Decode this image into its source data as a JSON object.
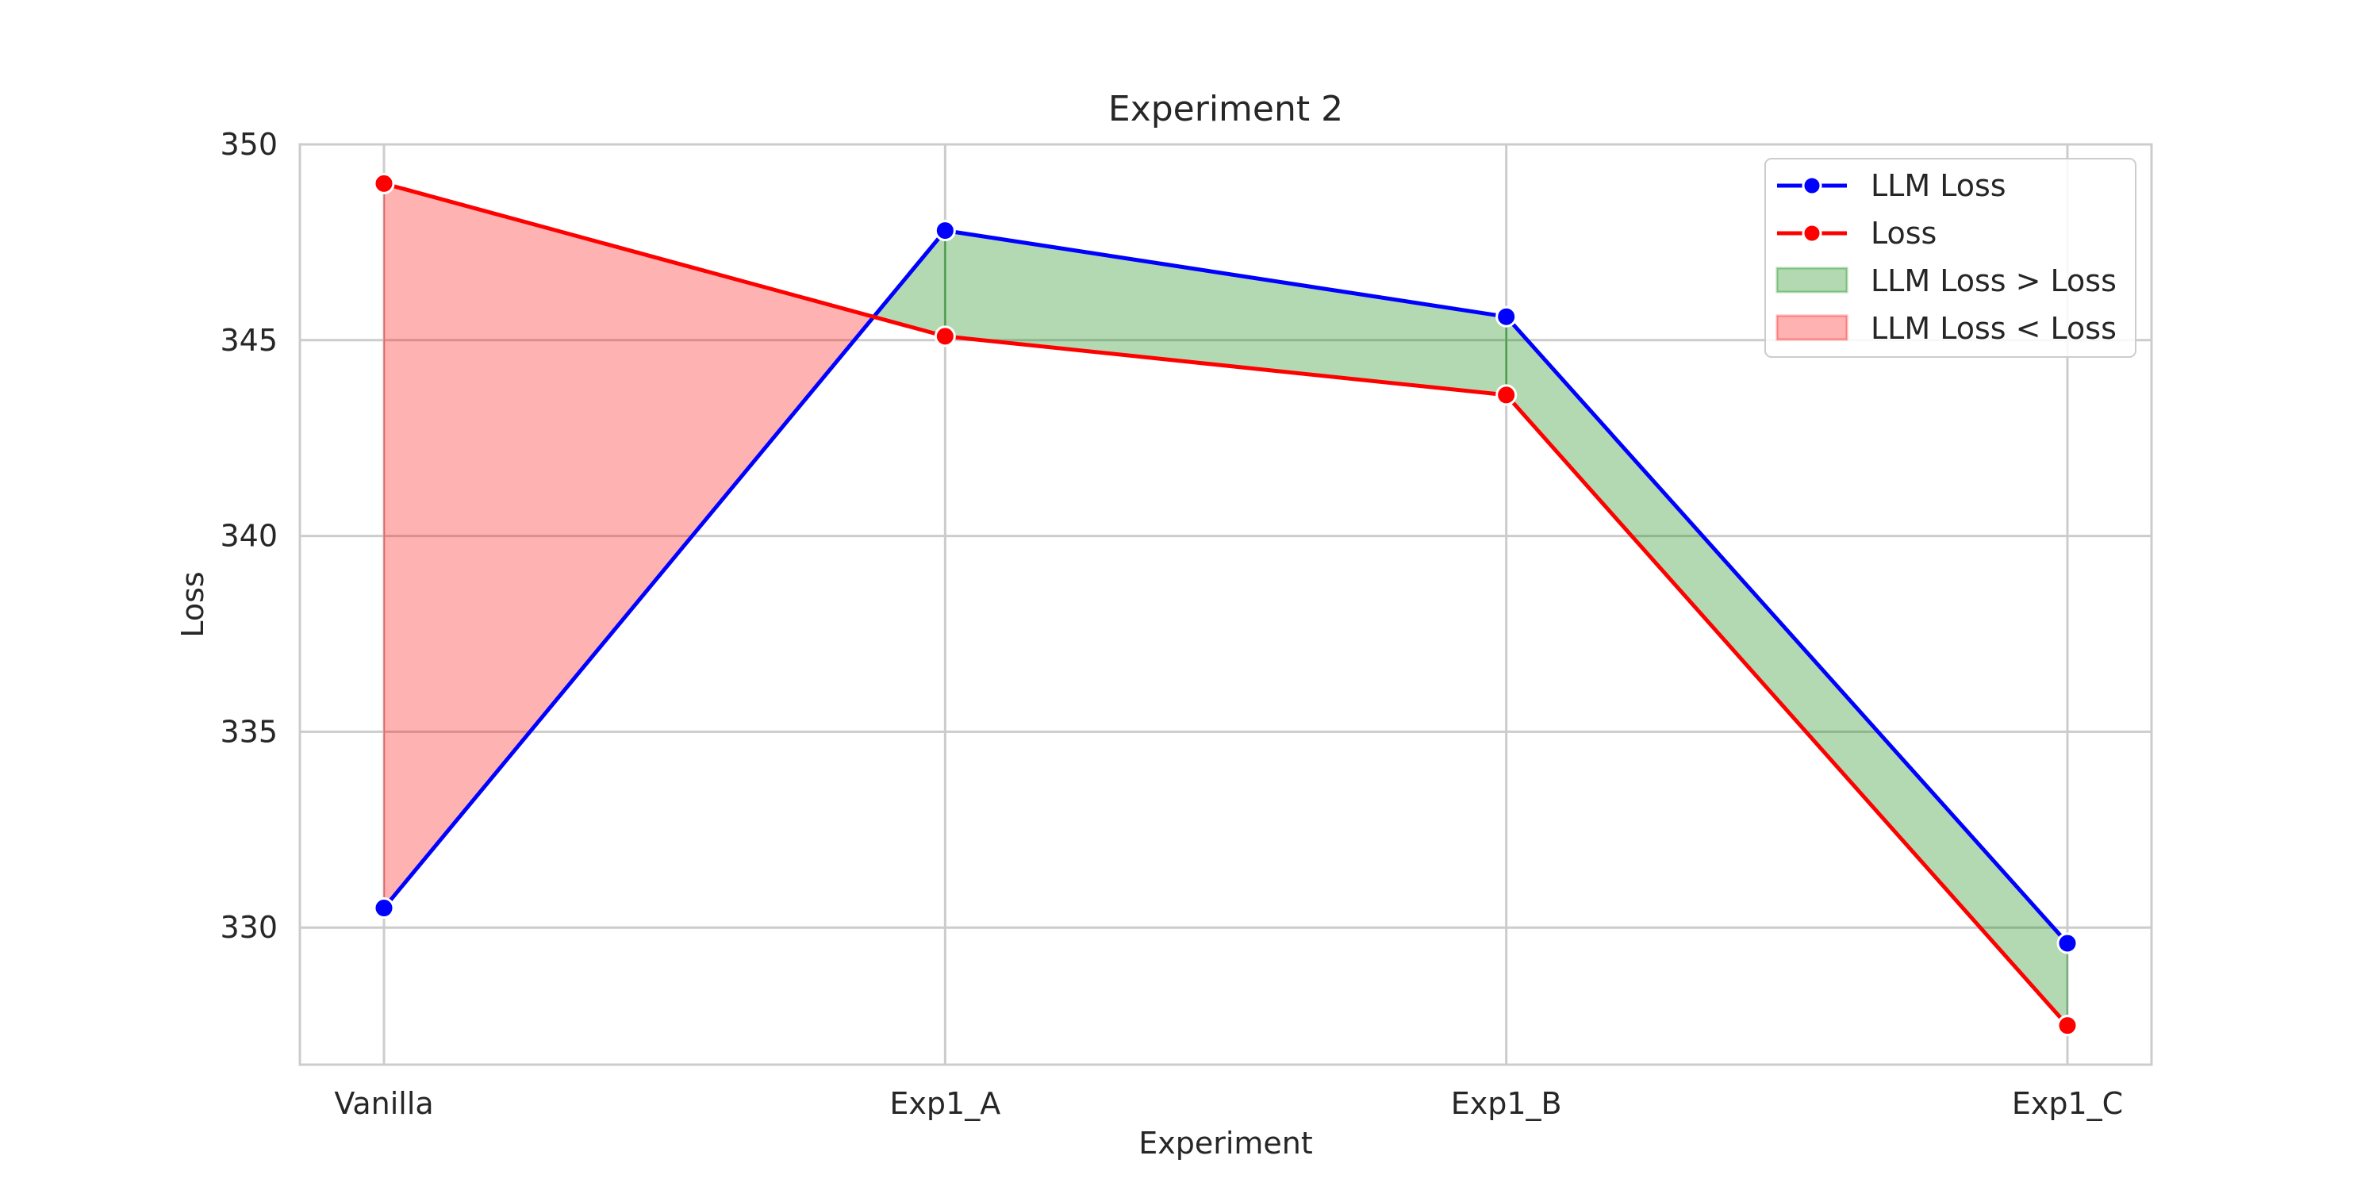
{
  "chart_data": {
    "type": "line",
    "title": "Experiment 2",
    "xlabel": "Experiment",
    "ylabel": "Loss",
    "categories": [
      "Vanilla",
      "Exp1_A",
      "Exp1_B",
      "Exp1_C"
    ],
    "ylim": [
      326.5,
      350.0
    ],
    "yticks": [
      330,
      335,
      340,
      345,
      350
    ],
    "grid": true,
    "legend_position": "top-right",
    "series": [
      {
        "name": "LLM Loss",
        "values": [
          330.5,
          347.8,
          345.6,
          329.6
        ],
        "color": "#0000ff",
        "marker": "circle"
      },
      {
        "name": "Loss",
        "values": [
          349.0,
          345.1,
          343.6,
          327.5
        ],
        "color": "#ff0000",
        "marker": "circle"
      }
    ],
    "fills": [
      {
        "name": "LLM Loss > Loss",
        "color": "#008000",
        "opacity": 0.3
      },
      {
        "name": "LLM Loss < Loss",
        "color": "#ff0000",
        "opacity": 0.3
      }
    ]
  }
}
